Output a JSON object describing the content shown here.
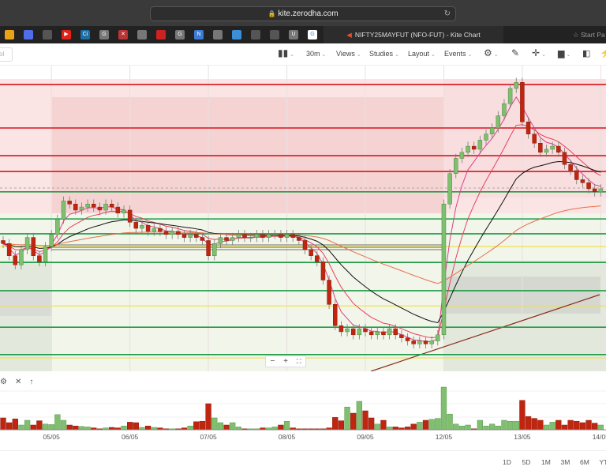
{
  "browser": {
    "url": "kite.zerodha.com",
    "active_tab": "NIFTY25MAYFUT (NFO-FUT) - Kite Chart",
    "start_tab": "Start Pa",
    "favicons": [
      {
        "label": "",
        "color": "#e8a317"
      },
      {
        "label": "",
        "color": "#4f6ee8"
      },
      {
        "label": "",
        "color": "#555"
      },
      {
        "label": "▶",
        "color": "#e62117"
      },
      {
        "label": "Ci",
        "color": "#1d6fa5"
      },
      {
        "label": "G",
        "color": "#777"
      },
      {
        "label": "✕",
        "color": "#b33"
      },
      {
        "label": "",
        "color": "#777"
      },
      {
        "label": "",
        "color": "#c22"
      },
      {
        "label": "G",
        "color": "#777"
      },
      {
        "label": "N",
        "color": "#3b7bd5"
      },
      {
        "label": "",
        "color": "#777"
      },
      {
        "label": "",
        "color": "#3a8fd8"
      },
      {
        "label": "",
        "color": "#555"
      },
      {
        "label": "",
        "color": "#555"
      },
      {
        "label": "U",
        "color": "#777"
      },
      {
        "label": "G",
        "color": "#fff"
      }
    ]
  },
  "toolbar": {
    "symbol_placeholder": "ol",
    "interval": "30m",
    "views": "Views",
    "studies": "Studies",
    "layout": "Layout",
    "events": "Events"
  },
  "chart_data": {
    "type": "candlestick",
    "title": "",
    "x_tick_labels": [
      "05/05",
      "06/05",
      "07/05",
      "08/05",
      "09/05",
      "12/05",
      "13/05",
      "14/05"
    ],
    "closes": [
      42,
      38,
      35,
      40,
      44,
      38,
      36,
      41,
      45,
      50,
      56,
      55,
      53,
      54,
      55,
      54,
      53,
      55,
      54,
      52,
      53,
      49,
      47,
      48,
      46,
      47,
      46,
      45,
      46,
      45,
      44,
      45,
      44,
      43,
      38,
      42,
      44,
      43,
      44,
      45,
      44,
      44,
      45,
      44,
      45,
      45,
      44,
      45,
      44,
      43,
      40,
      38,
      36,
      30,
      22,
      15,
      13,
      14,
      12,
      14,
      13,
      12,
      13,
      12,
      14,
      12,
      11,
      10,
      9,
      10,
      9,
      10,
      12,
      55,
      65,
      70,
      72,
      74,
      73,
      76,
      78,
      80,
      84,
      88,
      93,
      95,
      82,
      78,
      75,
      72,
      73,
      74,
      72,
      68,
      66,
      63,
      62,
      60,
      59,
      60
    ],
    "volumes": [
      25,
      15,
      23,
      10,
      20,
      10,
      19,
      12,
      11,
      32,
      20,
      10,
      8,
      7,
      6,
      4,
      2,
      4,
      5,
      4,
      8,
      16,
      15,
      5,
      8,
      5,
      4,
      2,
      2,
      2,
      4,
      8,
      17,
      18,
      55,
      25,
      15,
      10,
      15,
      6,
      2,
      2,
      2,
      4,
      4,
      6,
      10,
      18,
      4,
      2,
      2,
      2,
      2,
      2,
      4,
      26,
      19,
      48,
      35,
      60,
      40,
      25,
      12,
      20,
      6,
      6,
      4,
      6,
      12,
      16,
      20,
      22,
      24,
      90,
      33,
      12,
      8,
      10,
      2,
      20,
      8,
      12,
      8,
      20,
      18,
      18,
      62,
      28,
      24,
      20,
      10,
      16,
      20,
      10,
      20,
      18,
      15,
      20,
      14,
      10
    ],
    "levels": {
      "red": [
        94.3,
        80,
        70.9,
        65.7
      ],
      "green": [
        59,
        50.1,
        45.2,
        35.8,
        26.5,
        14.5,
        5.5
      ],
      "yellow": [
        41,
        21.5,
        4.4
      ]
    },
    "colors": {
      "up": "#7fbf6f",
      "down": "#c0260f",
      "red_level": "#d9141e",
      "green_level": "#1f9a45",
      "yellow_level": "#f0e050"
    }
  },
  "range_buttons": [
    "1D",
    "5D",
    "1M",
    "3M",
    "6M",
    "YT"
  ]
}
